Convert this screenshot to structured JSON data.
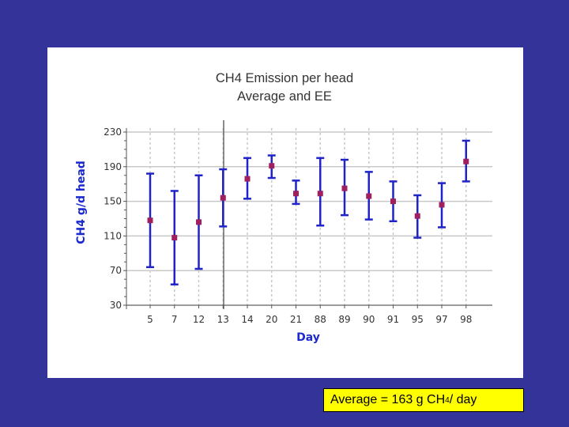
{
  "chart_data": {
    "type": "scatter",
    "subtype": "error-bar",
    "title": "CH4 Emission per head",
    "subtitle": "Average and EE",
    "xlabel": "Day",
    "ylabel": "CH4 g/d head",
    "categories": [
      "5",
      "7",
      "12",
      "13",
      "14",
      "20",
      "21",
      "88",
      "89",
      "90",
      "91",
      "95",
      "97",
      "98"
    ],
    "ylim": [
      30,
      230
    ],
    "yticks": [
      30,
      70,
      110,
      150,
      190,
      230
    ],
    "series": [
      {
        "name": "Average",
        "values": [
          128,
          108,
          126,
          154,
          176,
          191,
          159,
          159,
          165,
          156,
          150,
          133,
          146,
          196
        ],
        "err_low": [
          74,
          54,
          72,
          121,
          153,
          177,
          147,
          122,
          134,
          129,
          127,
          108,
          120,
          173
        ],
        "err_high": [
          182,
          162,
          180,
          187,
          200,
          203,
          174,
          200,
          198,
          184,
          173,
          157,
          171,
          220
        ]
      }
    ],
    "colors": {
      "marker": "#a01f5e",
      "errorbar": "#1f23c8",
      "grid": "#c8c8c8",
      "axis": "#555555"
    },
    "grid": true
  },
  "annotation": {
    "prefix": "Average = 163 g CH",
    "subscript": "4",
    "suffix": " / day",
    "bg_color": "#ffff00"
  },
  "theme": {
    "background": "#333399",
    "panel": "#ffffff"
  }
}
